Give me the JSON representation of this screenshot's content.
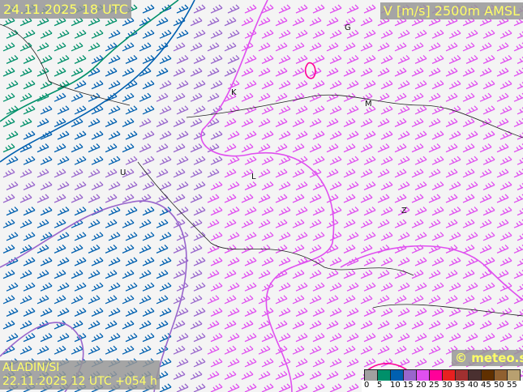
{
  "header": {
    "valid_time": "24.11.2025 18 UTC",
    "parameter": "V [m/s] 2500m AMSL"
  },
  "footer": {
    "model": "ALADIN/SI",
    "run": "22.11.2025 12 UTC +054 h",
    "copyright": "© meteo.si"
  },
  "legend": {
    "ticks": [
      "0",
      "5",
      "10",
      "15",
      "20",
      "25",
      "30",
      "35",
      "40",
      "45",
      "50",
      "55"
    ],
    "colors": [
      "#a0a0a0",
      "#00906a",
      "#0060b0",
      "#9966cc",
      "#e050f0",
      "#ff0099",
      "#e82020",
      "#a03030",
      "#4a3030",
      "#603000",
      "#906030",
      "#b8a070"
    ]
  },
  "cities": [
    "G",
    "K",
    "M",
    "L",
    "U",
    "Z"
  ],
  "colors": {
    "green": "#00906a",
    "blue": "#0060b0",
    "purple": "#9966cc",
    "magenta": "#e050f0",
    "pink": "#ff0099"
  }
}
